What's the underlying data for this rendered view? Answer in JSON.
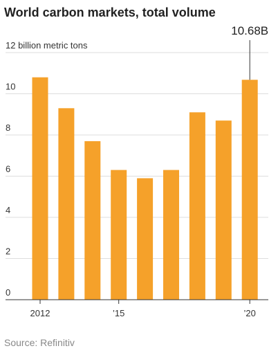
{
  "chart_data": {
    "type": "bar",
    "title": "World carbon markets, total volume",
    "source": "Source: Refinitiv",
    "categories": [
      "2012",
      null,
      null,
      "’15",
      null,
      null,
      null,
      null,
      "’20"
    ],
    "values": [
      10.8,
      9.3,
      7.7,
      6.3,
      5.9,
      6.3,
      9.1,
      8.7,
      10.68
    ],
    "value_labels": [
      null,
      null,
      null,
      null,
      null,
      null,
      null,
      null,
      "10.68B"
    ],
    "color": "#f5a12a",
    "ylim": [
      0,
      12
    ],
    "yticks": [
      0,
      2,
      4,
      6,
      8,
      10,
      {
        "value": 12,
        "label": "12 billion metric tons"
      }
    ],
    "grid": true
  }
}
